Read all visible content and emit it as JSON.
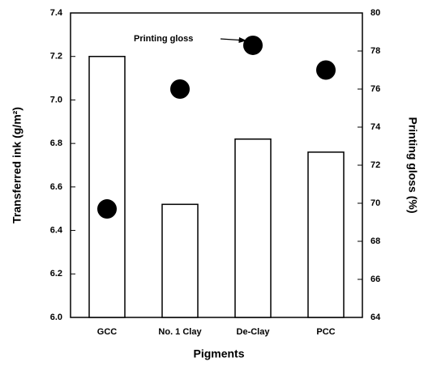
{
  "chart_data": {
    "type": "bar",
    "categories": [
      "GCC",
      "No. 1 Clay",
      "De-Clay",
      "PCC"
    ],
    "series": [
      {
        "type": "bar",
        "color": "#ffffff",
        "values": [
          7.2,
          6.52,
          6.82,
          6.76
        ]
      },
      {
        "type": "scatter",
        "axis": "y2",
        "color": "#000000",
        "values": [
          69.7,
          76,
          78.3,
          77
        ]
      }
    ],
    "ylim": [
      6.0,
      7.4
    ],
    "yticks": [
      {
        "value": 6,
        "label": "6.0"
      },
      6.2,
      6.4,
      6.6,
      6.8,
      {
        "value": 7,
        "label": "7.0"
      },
      7.2,
      7.4
    ],
    "y2lim": [
      64,
      80
    ],
    "y2ticks": [
      64,
      66,
      68,
      70,
      72,
      74,
      76,
      78,
      80
    ],
    "x_label": "Pigments",
    "y_label": "Transferred ink (g/m²)",
    "y2_label": "Printing gloss (%)",
    "annotation": "Printing gloss"
  }
}
